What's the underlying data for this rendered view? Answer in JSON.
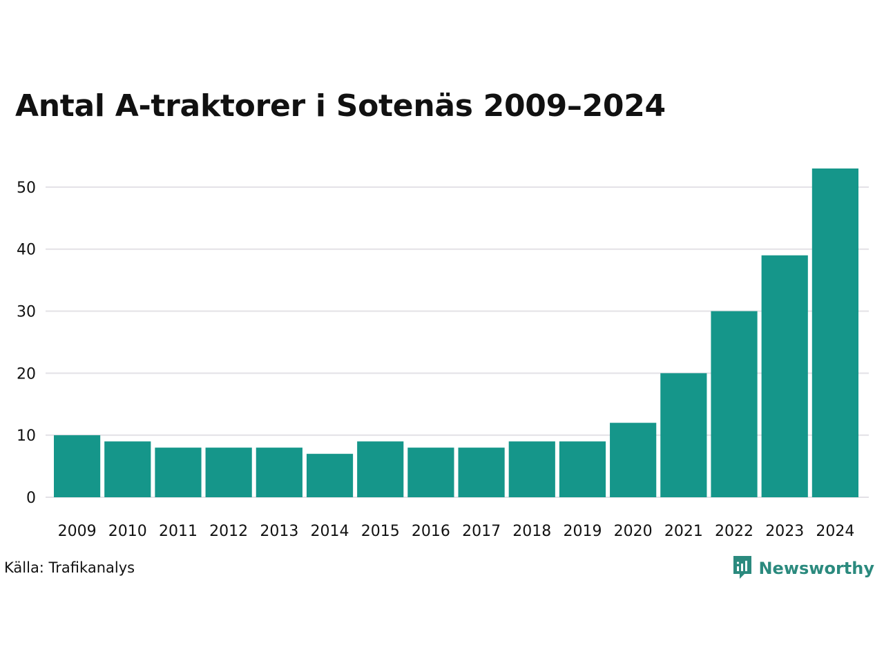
{
  "source": "Källa: Trafikanalys",
  "brand": {
    "name": "Newsworthy",
    "color": "#2b8a7e",
    "icon": "newsworthy-logo-icon"
  },
  "colors": {
    "bar": "#15968a",
    "grid": "#e3e1e6",
    "text": "#111111"
  },
  "chart_data": {
    "type": "bar",
    "title": "Antal A-traktorer i Sotenäs 2009–2024",
    "xlabel": "",
    "ylabel": "",
    "categories": [
      "2009",
      "2010",
      "2011",
      "2012",
      "2013",
      "2014",
      "2015",
      "2016",
      "2017",
      "2018",
      "2019",
      "2020",
      "2021",
      "2022",
      "2023",
      "2024"
    ],
    "values": [
      10,
      9,
      8,
      8,
      8,
      7,
      9,
      8,
      8,
      9,
      9,
      12,
      20,
      30,
      39,
      53
    ],
    "ylim": [
      0,
      55
    ],
    "yticks": [
      0,
      10,
      20,
      30,
      40,
      50
    ],
    "grid": true,
    "legend": "none"
  }
}
